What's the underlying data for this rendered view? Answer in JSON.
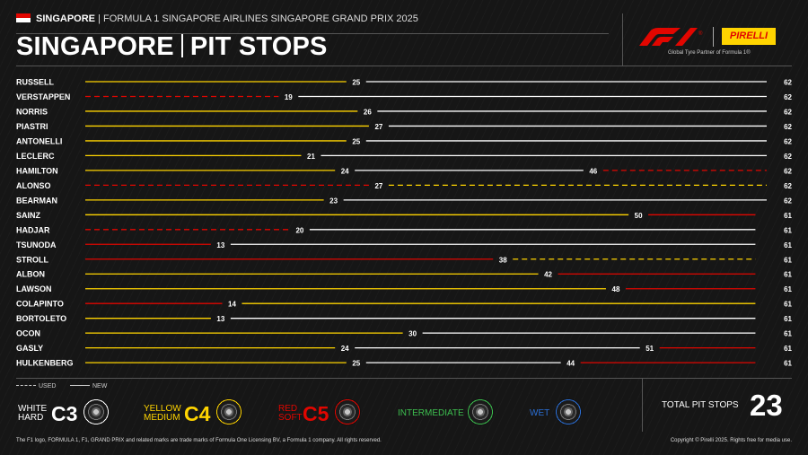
{
  "header": {
    "location": "SINGAPORE",
    "event": "FORMULA 1 SINGAPORE AIRLINES SINGAPORE GRAND PRIX 2025",
    "title_left": "SINGAPORE",
    "title_right": "PIT STOPS"
  },
  "brand": {
    "pirelli": "PIRELLI",
    "tagline": "Global Tyre Partner of Formula 1®"
  },
  "colors": {
    "soft": "#e10600",
    "medium": "#ffd400",
    "hard": "#ffffff",
    "intermediate": "#3dbf4f",
    "wet": "#2b6fd6"
  },
  "chart_data": {
    "type": "bar",
    "x_range": [
      1,
      62
    ],
    "drivers": [
      {
        "name": "RUSSELL",
        "finish_lap": 62,
        "stints": [
          {
            "compound": "medium",
            "used": false,
            "end": 25
          },
          {
            "compound": "hard",
            "used": false,
            "end": 62
          }
        ]
      },
      {
        "name": "VERSTAPPEN",
        "finish_lap": 62,
        "stints": [
          {
            "compound": "soft",
            "used": true,
            "end": 19
          },
          {
            "compound": "hard",
            "used": false,
            "end": 62
          }
        ]
      },
      {
        "name": "NORRIS",
        "finish_lap": 62,
        "stints": [
          {
            "compound": "medium",
            "used": false,
            "end": 26
          },
          {
            "compound": "hard",
            "used": false,
            "end": 62
          }
        ]
      },
      {
        "name": "PIASTRI",
        "finish_lap": 62,
        "stints": [
          {
            "compound": "medium",
            "used": false,
            "end": 27
          },
          {
            "compound": "hard",
            "used": false,
            "end": 62
          }
        ]
      },
      {
        "name": "ANTONELLI",
        "finish_lap": 62,
        "stints": [
          {
            "compound": "medium",
            "used": false,
            "end": 25
          },
          {
            "compound": "hard",
            "used": false,
            "end": 62
          }
        ]
      },
      {
        "name": "LECLERC",
        "finish_lap": 62,
        "stints": [
          {
            "compound": "medium",
            "used": false,
            "end": 21
          },
          {
            "compound": "hard",
            "used": false,
            "end": 62
          }
        ]
      },
      {
        "name": "HAMILTON",
        "finish_lap": 62,
        "stints": [
          {
            "compound": "medium",
            "used": false,
            "end": 24
          },
          {
            "compound": "hard",
            "used": false,
            "end": 46
          },
          {
            "compound": "soft",
            "used": true,
            "end": 62
          }
        ]
      },
      {
        "name": "ALONSO",
        "finish_lap": 62,
        "stints": [
          {
            "compound": "soft",
            "used": true,
            "end": 27
          },
          {
            "compound": "medium",
            "used": true,
            "end": 62
          }
        ]
      },
      {
        "name": "BEARMAN",
        "finish_lap": 62,
        "stints": [
          {
            "compound": "medium",
            "used": false,
            "end": 23
          },
          {
            "compound": "hard",
            "used": false,
            "end": 62
          }
        ]
      },
      {
        "name": "SAINZ",
        "finish_lap": 61,
        "stints": [
          {
            "compound": "medium",
            "used": false,
            "end": 50
          },
          {
            "compound": "soft",
            "used": false,
            "end": 61
          }
        ]
      },
      {
        "name": "HADJAR",
        "finish_lap": 61,
        "stints": [
          {
            "compound": "soft",
            "used": true,
            "end": 20
          },
          {
            "compound": "hard",
            "used": false,
            "end": 61
          }
        ]
      },
      {
        "name": "TSUNODA",
        "finish_lap": 61,
        "stints": [
          {
            "compound": "soft",
            "used": false,
            "end": 13
          },
          {
            "compound": "hard",
            "used": false,
            "end": 61
          }
        ]
      },
      {
        "name": "STROLL",
        "finish_lap": 61,
        "stints": [
          {
            "compound": "soft",
            "used": false,
            "end": 38
          },
          {
            "compound": "medium",
            "used": true,
            "end": 61
          }
        ]
      },
      {
        "name": "ALBON",
        "finish_lap": 61,
        "stints": [
          {
            "compound": "medium",
            "used": false,
            "end": 42
          },
          {
            "compound": "soft",
            "used": false,
            "end": 61
          }
        ]
      },
      {
        "name": "LAWSON",
        "finish_lap": 61,
        "stints": [
          {
            "compound": "medium",
            "used": false,
            "end": 48
          },
          {
            "compound": "soft",
            "used": false,
            "end": 61
          }
        ]
      },
      {
        "name": "COLAPINTO",
        "finish_lap": 61,
        "stints": [
          {
            "compound": "soft",
            "used": false,
            "end": 14
          },
          {
            "compound": "medium",
            "used": false,
            "end": 61
          }
        ]
      },
      {
        "name": "BORTOLETO",
        "finish_lap": 61,
        "stints": [
          {
            "compound": "medium",
            "used": false,
            "end": 13
          },
          {
            "compound": "hard",
            "used": false,
            "end": 61
          }
        ]
      },
      {
        "name": "OCON",
        "finish_lap": 61,
        "stints": [
          {
            "compound": "medium",
            "used": false,
            "end": 30
          },
          {
            "compound": "hard",
            "used": false,
            "end": 61
          }
        ]
      },
      {
        "name": "GASLY",
        "finish_lap": 61,
        "stints": [
          {
            "compound": "medium",
            "used": false,
            "end": 24
          },
          {
            "compound": "hard",
            "used": false,
            "end": 51
          },
          {
            "compound": "soft",
            "used": false,
            "end": 61
          }
        ]
      },
      {
        "name": "HULKENBERG",
        "finish_lap": 61,
        "stints": [
          {
            "compound": "medium",
            "used": false,
            "end": 25
          },
          {
            "compound": "hard",
            "used": false,
            "end": 44
          },
          {
            "compound": "soft",
            "used": false,
            "end": 61
          }
        ]
      }
    ]
  },
  "legend": {
    "used": "USED",
    "new": "NEW",
    "tyres": [
      {
        "key": "hard",
        "top": "WHITE",
        "bottom": "HARD",
        "code": "C3"
      },
      {
        "key": "medium",
        "top": "YELLOW",
        "bottom": "MEDIUM",
        "code": "C4"
      },
      {
        "key": "soft",
        "top": "RED",
        "bottom": "SOFT",
        "code": "C5"
      },
      {
        "key": "intermediate",
        "label": "INTERMEDIATE"
      },
      {
        "key": "wet",
        "label": "WET"
      }
    ]
  },
  "total": {
    "label": "TOTAL PIT STOPS",
    "value": "23"
  },
  "footer": {
    "left": "The F1 logo, FORMULA 1, F1, GRAND PRIX and related marks are trade marks of Formula One Licensing BV, a Formula 1 company. All rights reserved.",
    "right": "Copyright © Pirelli 2025. Rights free for media use."
  }
}
